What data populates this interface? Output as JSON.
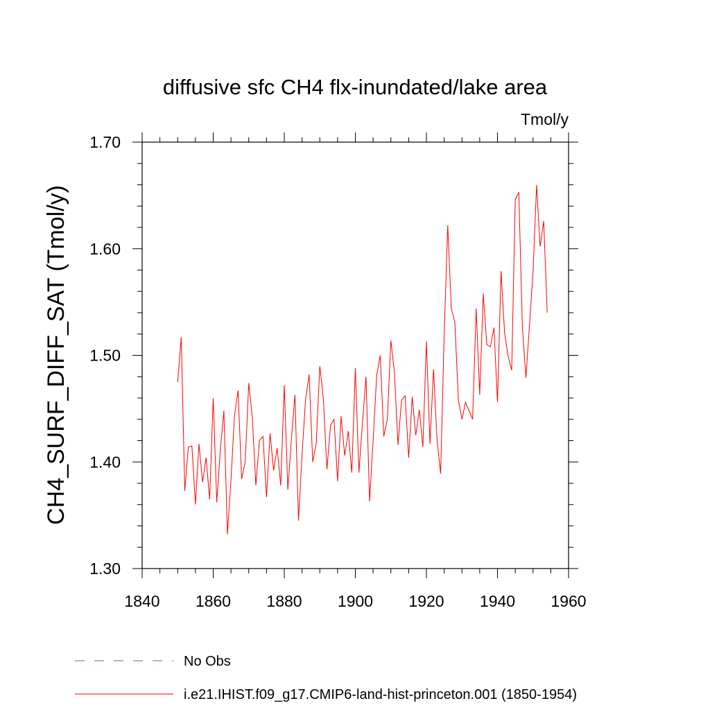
{
  "chart_data": {
    "type": "line",
    "title": "diffusive sfc CH4 flx-inundated/lake area",
    "units": "Tmol/y",
    "ylabel": "CH4_SURF_DIFF_SAT  (Tmol/y)",
    "xlabel": "",
    "xlim": [
      1840,
      1960
    ],
    "ylim": [
      1.3,
      1.7
    ],
    "x_ticks": [
      1840,
      1860,
      1880,
      1900,
      1920,
      1940,
      1960
    ],
    "y_ticks": [
      1.3,
      1.4,
      1.5,
      1.6,
      1.7
    ],
    "x_tick_labels": [
      "1840",
      "1860",
      "1880",
      "1900",
      "1920",
      "1940",
      "1960"
    ],
    "y_tick_labels": [
      "1.30",
      "1.40",
      "1.50",
      "1.60",
      "1.70"
    ],
    "grid": false,
    "legend_position": "bottom",
    "series": [
      {
        "name": "No Obs",
        "color": "#6a5acd",
        "style": "dashed",
        "x": [],
        "values": []
      },
      {
        "name": "i.e21.IHIST.f09_g17.CMIP6-land-hist-princeton.001 (1850-1954)",
        "color": "#ff0000",
        "style": "solid",
        "x_start": 1850,
        "values": [
          1.475,
          1.517,
          1.373,
          1.414,
          1.415,
          1.36,
          1.417,
          1.381,
          1.404,
          1.365,
          1.46,
          1.362,
          1.411,
          1.448,
          1.332,
          1.383,
          1.444,
          1.467,
          1.384,
          1.4,
          1.474,
          1.442,
          1.378,
          1.42,
          1.424,
          1.367,
          1.427,
          1.392,
          1.413,
          1.378,
          1.472,
          1.374,
          1.421,
          1.463,
          1.345,
          1.407,
          1.459,
          1.482,
          1.4,
          1.418,
          1.49,
          1.459,
          1.393,
          1.434,
          1.44,
          1.382,
          1.443,
          1.406,
          1.429,
          1.39,
          1.488,
          1.39,
          1.437,
          1.48,
          1.363,
          1.42,
          1.481,
          1.5,
          1.424,
          1.44,
          1.514,
          1.484,
          1.416,
          1.458,
          1.462,
          1.404,
          1.461,
          1.425,
          1.449,
          1.414,
          1.513,
          1.417,
          1.487,
          1.42,
          1.389,
          1.52,
          1.622,
          1.544,
          1.531,
          1.458,
          1.44,
          1.456,
          1.448,
          1.44,
          1.544,
          1.463,
          1.558,
          1.51,
          1.508,
          1.526,
          1.456,
          1.579,
          1.521,
          1.499,
          1.486,
          1.646,
          1.653,
          1.527,
          1.479,
          1.528,
          1.578,
          1.66,
          1.602,
          1.626,
          1.54
        ]
      }
    ]
  }
}
